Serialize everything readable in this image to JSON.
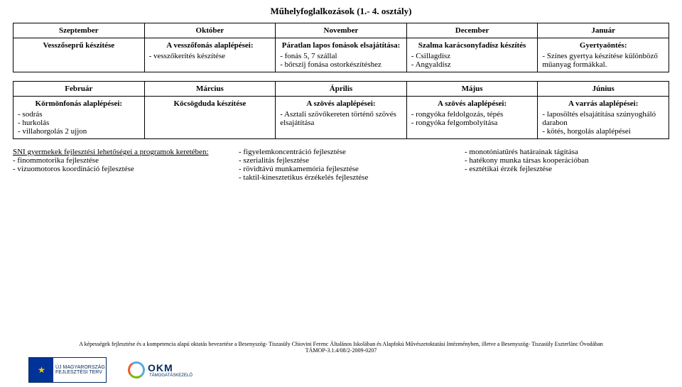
{
  "title": "Műhelyfoglalkozások (1.- 4. osztály)",
  "table1": {
    "headers": [
      "Szeptember",
      "Október",
      "November",
      "December",
      "Január"
    ],
    "cells": [
      {
        "head": "Vesszőseprű készítése",
        "body": ""
      },
      {
        "head": "A vesszőfonás alaplépései:",
        "body": "- vesszőkerítés készítése"
      },
      {
        "head": "Páratlan lapos fonások elsajátítása:",
        "body": "- fonás 5, 7 szállal\n- bőrszíj fonása ostorkészítéshez"
      },
      {
        "head": "Szalma karácsonyfadísz készítés",
        "body": "- Csillagdísz\n- Angyaldísz"
      },
      {
        "head": "Gyertyaöntés:",
        "body": "- Színes gyertya készítése különböző műanyag formákkal."
      }
    ]
  },
  "table2": {
    "headers": [
      "Február",
      "Március",
      "Április",
      "Május",
      "Június"
    ],
    "cells": [
      {
        "head": "Körmönfonás alaplépései:",
        "body": "- sodrás\n- hurkolás\n- villahorgolás 2 ujjon"
      },
      {
        "head": "Köcsögduda készítése",
        "body": ""
      },
      {
        "head": "A szövés alaplépései:",
        "body": "- Asztali szövőkereten történő szövés elsajátítása"
      },
      {
        "head": "A szövés alaplépései:",
        "body": "- rongyóka feldolgozás, tépés\n- rongyóka felgombolyítása"
      },
      {
        "head": "A varrás alaplépései:",
        "body": "- laposöltés elsajátítása szúnyogháló darabon\n- kötés, horgolás alaplépései"
      }
    ]
  },
  "sni": {
    "col1": {
      "head": "SNI gyermekek fejlesztési lehetőségei a programok keretében:",
      "body": "- finommotorika fejlesztése\n- vizuomotoros koordináció fejlesztése"
    },
    "col2": {
      "body": "- figyelemkoncentráció fejlesztése\n- szerialitás fejlesztése\n- rövidtávú munkamemória fejlesztése\n- taktil-kinesztetikus érzékelés fejlesztése"
    },
    "col3": {
      "body": "- monotóniatűrés határainak tágítása\n- hatékony munka társas kooperációban\n- esztétikai érzék fejlesztése"
    }
  },
  "footer": {
    "line1": "A képességek fejlesztése és a kompetencia alapú oktatás bevezetése a Besenyszög- Tiszasüly Chiovini Ferenc Általános Iskolában és Alapfokú Művészetoktatási Intézményben, illetve a Besenyszög- Tiszasüly Eszterlánc Óvodában",
    "line2": "TÁMOP-3.1.4/08/2-2009-0207",
    "umft_l1": "ÚJ MAGYARORSZÁG",
    "umft_l2": "FEJLESZTÉSI TERV",
    "okm": "OKM",
    "okm_sub": "TÁMOGATÁSKEZELŐ"
  }
}
